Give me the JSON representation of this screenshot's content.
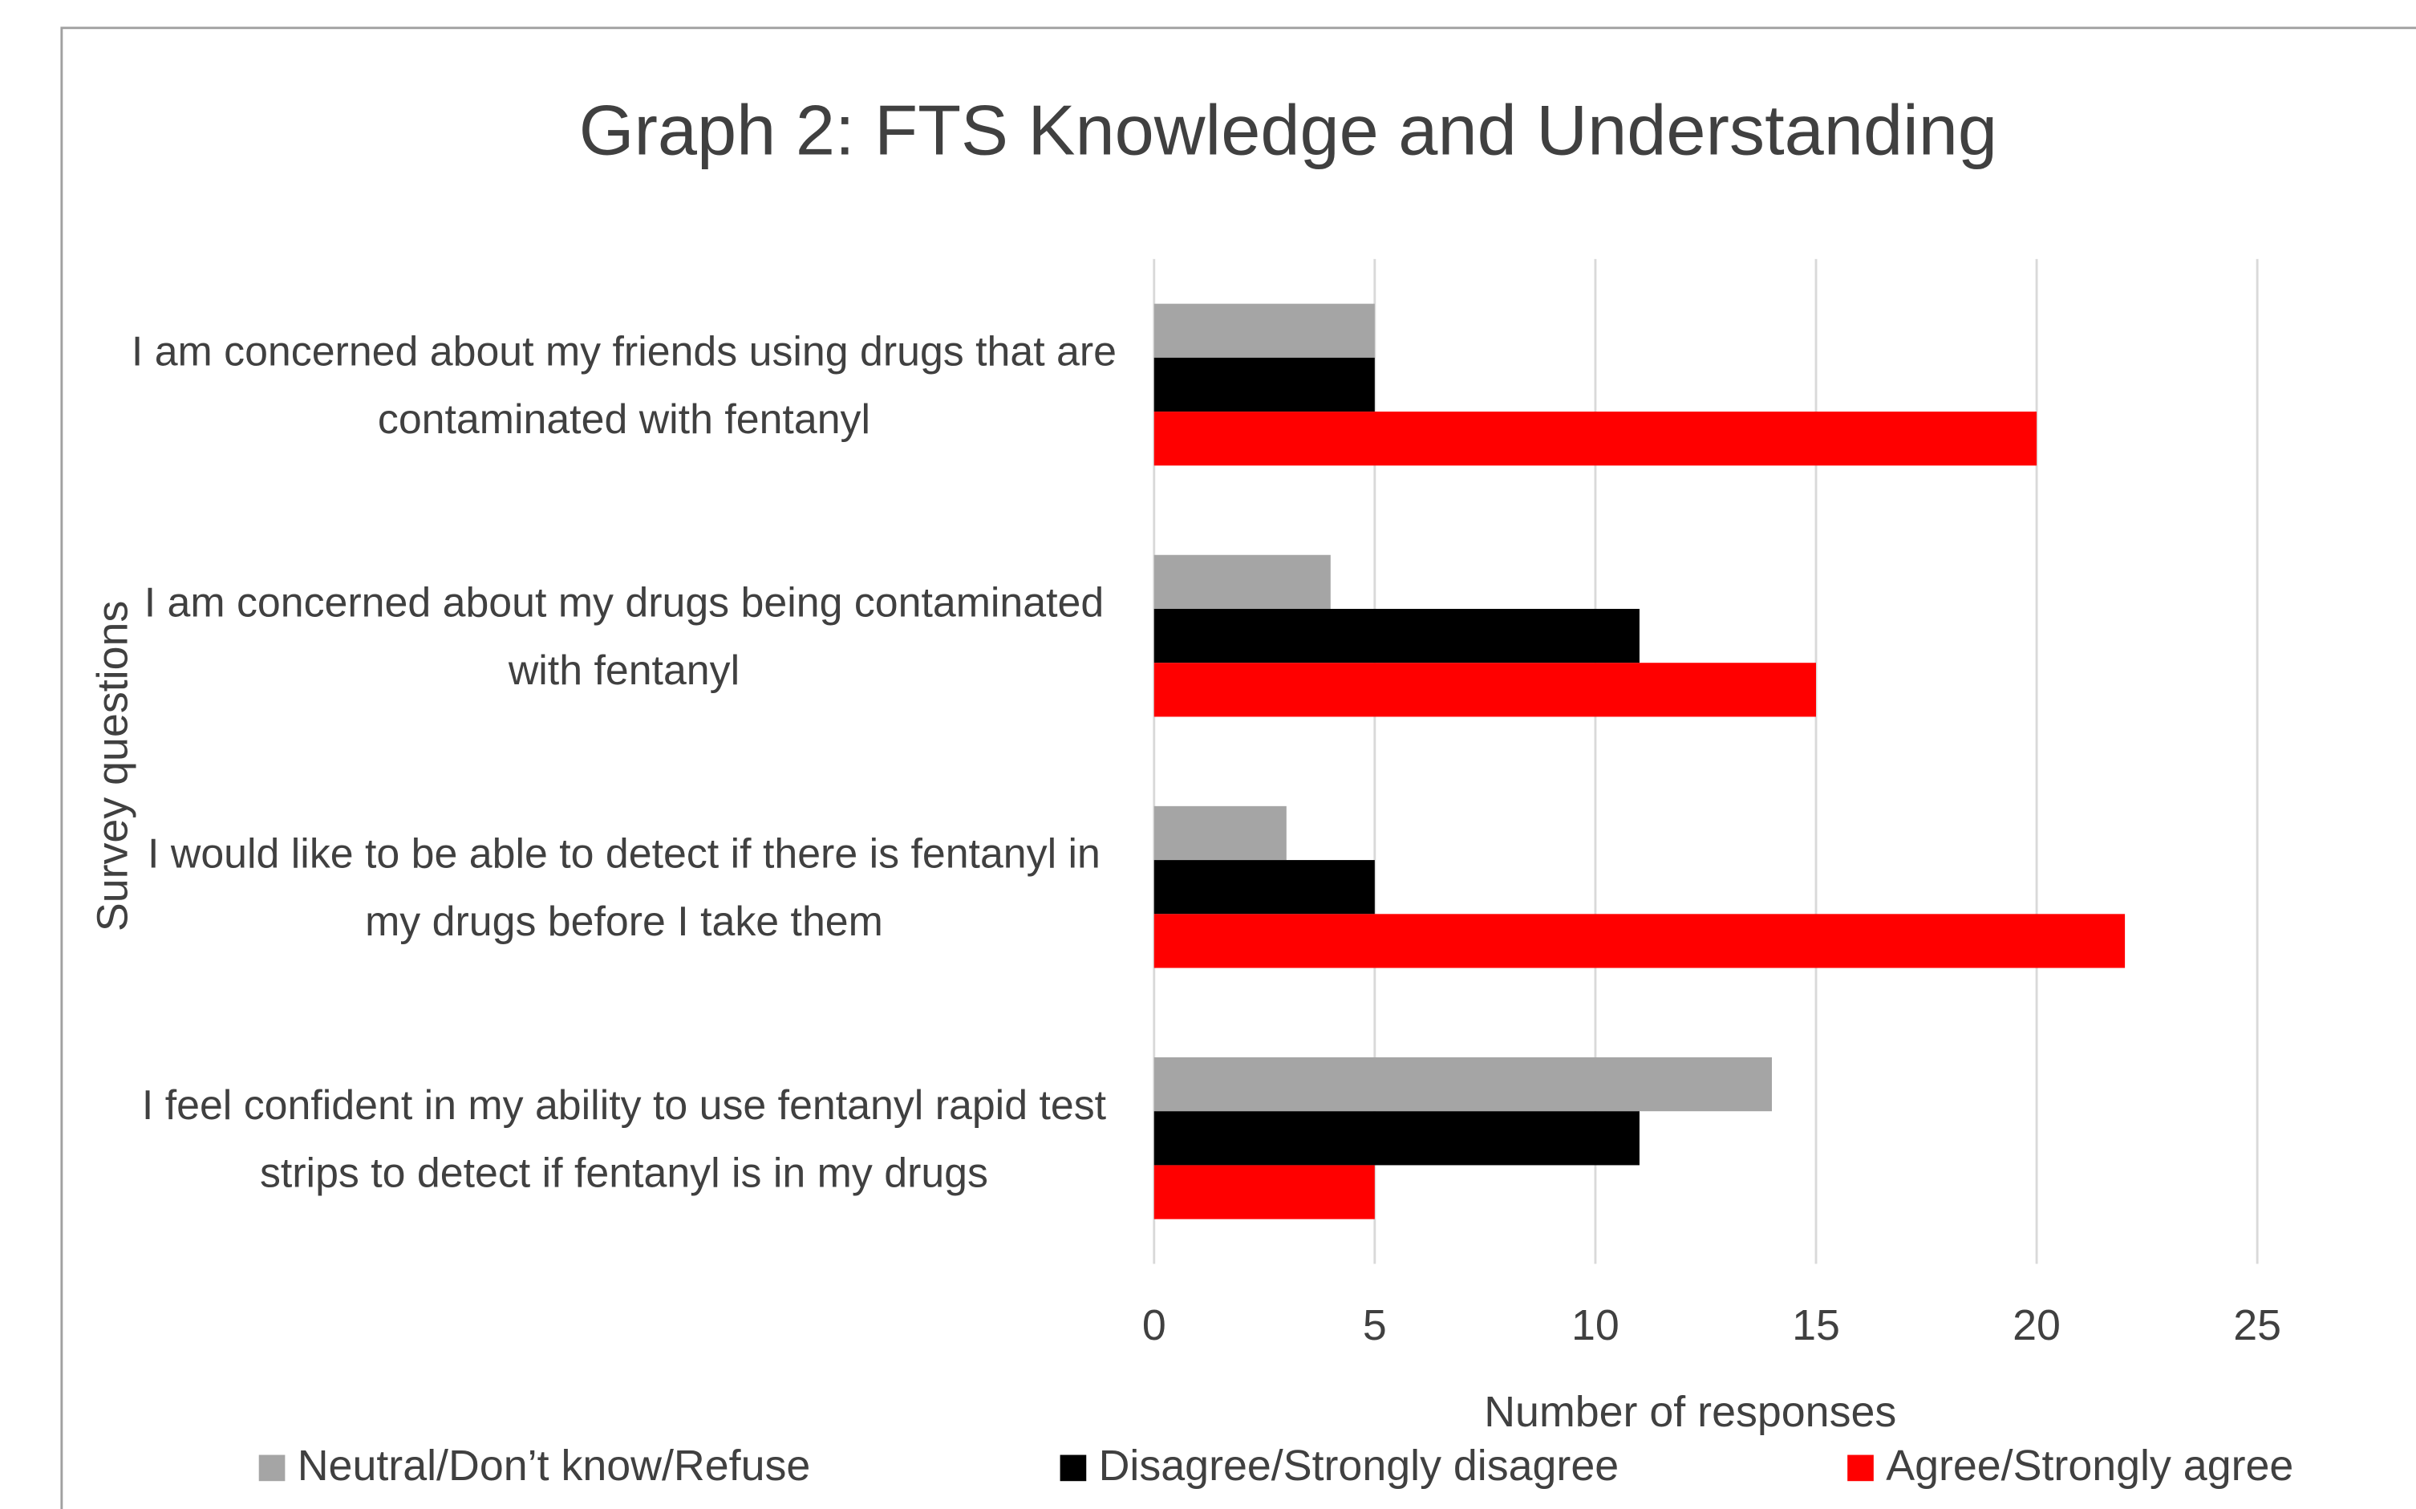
{
  "chart_data": {
    "type": "barh",
    "title": "Graph 2: FTS Knowledge and Understanding",
    "xlabel": "Number of responses",
    "ylabel": "Survey questions",
    "categories": [
      "I am concerned about my friends using drugs that are contaminated with fentanyl",
      "I am concerned about my drugs being contaminated with fentanyl",
      "I would like to be able to detect if there is fentanyl in my drugs before I take them",
      "I feel confident in my ability to use fentanyl rapid test strips to detect if fentanyl is in my drugs"
    ],
    "series": [
      {
        "name": "Neutral/Don’t know/Refuse",
        "color": "#a5a5a5",
        "values": [
          5,
          4,
          3,
          14
        ]
      },
      {
        "name": "Disagree/Strongly disagree",
        "color": "#000000",
        "values": [
          5,
          11,
          5,
          11
        ]
      },
      {
        "name": "Agree/Strongly agree",
        "color": "#ff0000",
        "values": [
          20,
          15,
          22,
          5
        ]
      }
    ],
    "xlim": [
      0,
      25
    ],
    "xticks": [
      0,
      5,
      10,
      15,
      20,
      25
    ],
    "grid": true,
    "legend": "bottom"
  }
}
